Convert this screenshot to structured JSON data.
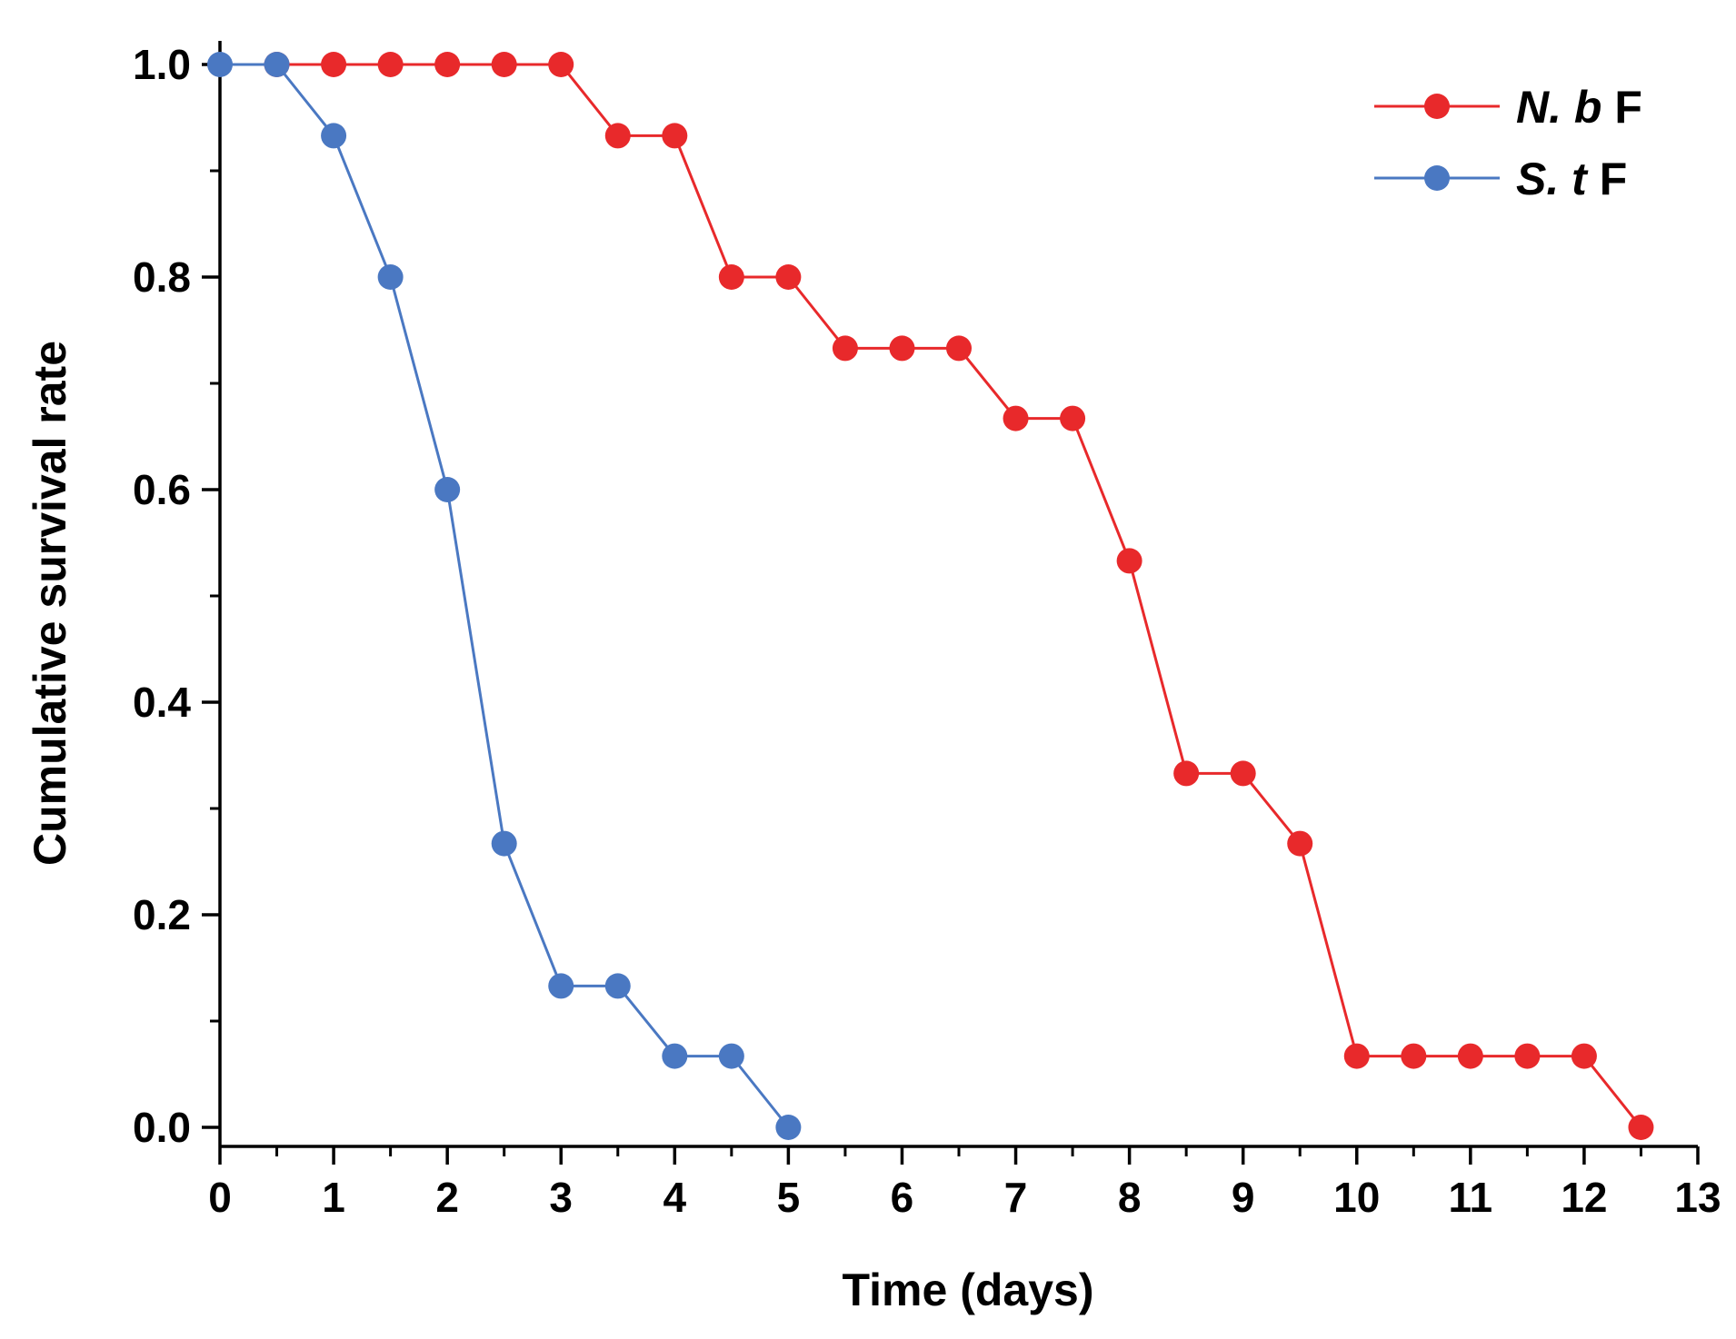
{
  "chart_data": {
    "type": "line",
    "title": "",
    "xlabel": "Time (days)",
    "ylabel": "Cumulative survival rate",
    "xlim": [
      0,
      13
    ],
    "ylim": [
      0,
      1.0
    ],
    "x_ticks": [
      "0",
      "1",
      "2",
      "3",
      "4",
      "5",
      "6",
      "7",
      "8",
      "9",
      "10",
      "11",
      "12",
      "13"
    ],
    "y_ticks": [
      "0.0",
      "0.2",
      "0.4",
      "0.6",
      "0.8",
      "1.0"
    ],
    "grid": false,
    "legend_position": "top-right",
    "series": [
      {
        "name": "N. b F",
        "name_italic": "N. b",
        "name_suffix": "F",
        "color": "#e8292b",
        "x": [
          0.5,
          1,
          1.5,
          2,
          2.5,
          3,
          3.5,
          4,
          4.5,
          5,
          5.5,
          6,
          6.5,
          7,
          7.5,
          8,
          8.5,
          9,
          9.5,
          10,
          10.5,
          11,
          11.5,
          12,
          12.5
        ],
        "y": [
          1.0,
          1.0,
          1.0,
          1.0,
          1.0,
          1.0,
          0.933,
          0.933,
          0.8,
          0.8,
          0.733,
          0.733,
          0.733,
          0.667,
          0.667,
          0.533,
          0.333,
          0.333,
          0.267,
          0.067,
          0.067,
          0.067,
          0.067,
          0.067,
          0.0
        ]
      },
      {
        "name": "S. t F",
        "name_italic": "S. t",
        "name_suffix": "F",
        "color": "#4a78c2",
        "x": [
          0,
          0.5,
          1,
          1.5,
          2,
          2.5,
          3,
          3.5,
          4,
          4.5,
          5
        ],
        "y": [
          1.0,
          1.0,
          0.933,
          0.8,
          0.6,
          0.267,
          0.133,
          0.133,
          0.067,
          0.067,
          0.0
        ]
      }
    ]
  }
}
